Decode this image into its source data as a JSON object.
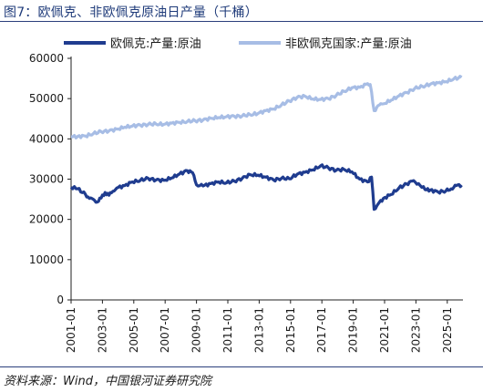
{
  "figure": {
    "title": "图7：欧佩克、非欧佩克原油日产量（千桶）",
    "source": "资料来源：Wind，中国银河证券研究院"
  },
  "colors": {
    "series_1": "#1f3c8f",
    "series_2": "#a7bde5",
    "axis": "#222222",
    "rule": "#2b3f7c"
  },
  "chart_data": {
    "type": "line",
    "title": "",
    "xlabel": "",
    "ylabel": "",
    "ylim": [
      0,
      60000
    ],
    "yticks": [
      0,
      10000,
      20000,
      30000,
      40000,
      50000,
      60000
    ],
    "xticks": [
      "2001-01",
      "2003-01",
      "2005-01",
      "2007-01",
      "2009-01",
      "2011-01",
      "2013-01",
      "2015-01",
      "2017-01",
      "2019-01",
      "2021-01",
      "2023-01",
      "2025-01"
    ],
    "xlim": [
      "2001-01",
      "2026-01"
    ],
    "grid": false,
    "legend": "top",
    "series": [
      {
        "name": "欧佩克:产量:原油",
        "color": "#1f3c8f",
        "points": [
          [
            "2001-01",
            28000
          ],
          [
            "2001-06",
            27600
          ],
          [
            "2001-12",
            26200
          ],
          [
            "2002-03",
            25200
          ],
          [
            "2002-06",
            25000
          ],
          [
            "2002-09",
            24300
          ],
          [
            "2002-12",
            25300
          ],
          [
            "2003-03",
            26700
          ],
          [
            "2003-06",
            26000
          ],
          [
            "2003-09",
            27000
          ],
          [
            "2003-12",
            27800
          ],
          [
            "2004-06",
            28400
          ],
          [
            "2004-12",
            29300
          ],
          [
            "2005-06",
            29700
          ],
          [
            "2005-12",
            30200
          ],
          [
            "2006-06",
            29800
          ],
          [
            "2006-12",
            29700
          ],
          [
            "2007-06",
            30300
          ],
          [
            "2007-12",
            31300
          ],
          [
            "2008-06",
            32100
          ],
          [
            "2008-10",
            31600
          ],
          [
            "2009-01",
            28600
          ],
          [
            "2009-06",
            28300
          ],
          [
            "2009-12",
            28900
          ],
          [
            "2010-06",
            29300
          ],
          [
            "2010-12",
            29100
          ],
          [
            "2011-06",
            29500
          ],
          [
            "2011-12",
            30200
          ],
          [
            "2012-06",
            31100
          ],
          [
            "2012-12",
            31000
          ],
          [
            "2013-06",
            30500
          ],
          [
            "2013-12",
            29800
          ],
          [
            "2014-06",
            30200
          ],
          [
            "2014-12",
            30100
          ],
          [
            "2015-06",
            31200
          ],
          [
            "2015-12",
            31700
          ],
          [
            "2016-06",
            32300
          ],
          [
            "2016-12",
            33300
          ],
          [
            "2017-06",
            32800
          ],
          [
            "2017-12",
            32200
          ],
          [
            "2018-06",
            32400
          ],
          [
            "2018-12",
            31800
          ],
          [
            "2019-06",
            30000
          ],
          [
            "2019-12",
            29300
          ],
          [
            "2020-03",
            30500
          ],
          [
            "2020-05",
            22500
          ],
          [
            "2020-08",
            23800
          ],
          [
            "2020-12",
            25200
          ],
          [
            "2021-06",
            26200
          ],
          [
            "2021-12",
            27800
          ],
          [
            "2022-06",
            28800
          ],
          [
            "2022-10",
            29500
          ],
          [
            "2023-03",
            28900
          ],
          [
            "2023-08",
            27400
          ],
          [
            "2023-12",
            27300
          ],
          [
            "2024-06",
            26800
          ],
          [
            "2024-12",
            27100
          ],
          [
            "2025-04",
            27600
          ],
          [
            "2025-08",
            28400
          ],
          [
            "2025-12",
            28500
          ]
        ]
      },
      {
        "name": "非欧佩克国家:产量:原油",
        "color": "#a7bde5",
        "points": [
          [
            "2001-01",
            40500
          ],
          [
            "2001-06",
            40600
          ],
          [
            "2001-12",
            40700
          ],
          [
            "2002-06",
            41300
          ],
          [
            "2002-12",
            41800
          ],
          [
            "2003-06",
            42000
          ],
          [
            "2003-12",
            42400
          ],
          [
            "2004-06",
            42900
          ],
          [
            "2004-12",
            43200
          ],
          [
            "2005-06",
            43400
          ],
          [
            "2005-12",
            43600
          ],
          [
            "2006-06",
            43700
          ],
          [
            "2006-12",
            43600
          ],
          [
            "2007-06",
            43900
          ],
          [
            "2007-12",
            44100
          ],
          [
            "2008-06",
            44300
          ],
          [
            "2008-12",
            44500
          ],
          [
            "2009-06",
            44700
          ],
          [
            "2009-12",
            45100
          ],
          [
            "2010-06",
            45300
          ],
          [
            "2010-12",
            45500
          ],
          [
            "2011-06",
            45600
          ],
          [
            "2011-12",
            45700
          ],
          [
            "2012-06",
            46000
          ],
          [
            "2012-12",
            46300
          ],
          [
            "2013-06",
            47000
          ],
          [
            "2013-12",
            47400
          ],
          [
            "2014-06",
            48400
          ],
          [
            "2014-12",
            49400
          ],
          [
            "2015-06",
            50300
          ],
          [
            "2015-12",
            50600
          ],
          [
            "2016-06",
            49900
          ],
          [
            "2016-12",
            49800
          ],
          [
            "2017-06",
            50000
          ],
          [
            "2017-12",
            50800
          ],
          [
            "2018-06",
            51800
          ],
          [
            "2018-12",
            52700
          ],
          [
            "2019-06",
            52800
          ],
          [
            "2019-12",
            53700
          ],
          [
            "2020-02",
            53500
          ],
          [
            "2020-05",
            47000
          ],
          [
            "2020-09",
            48400
          ],
          [
            "2020-12",
            48700
          ],
          [
            "2021-06",
            49600
          ],
          [
            "2021-12",
            50700
          ],
          [
            "2022-06",
            51500
          ],
          [
            "2022-12",
            52500
          ],
          [
            "2023-06",
            53000
          ],
          [
            "2023-12",
            53600
          ],
          [
            "2024-06",
            53900
          ],
          [
            "2024-12",
            54200
          ],
          [
            "2025-06",
            54900
          ],
          [
            "2025-12",
            55300
          ]
        ]
      }
    ]
  }
}
